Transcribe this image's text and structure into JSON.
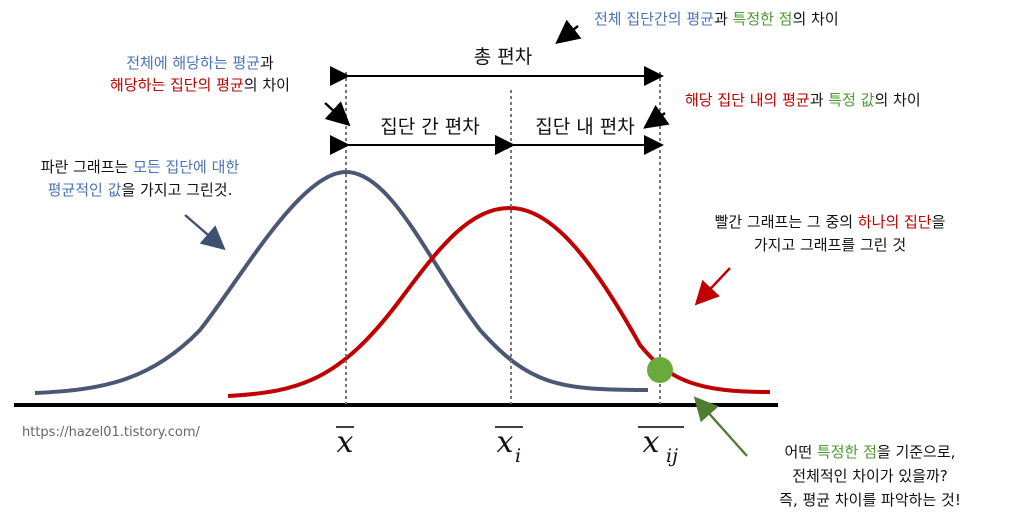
{
  "colors": {
    "blue_curve": "#4a5873",
    "red_curve": "#c00000",
    "green_point": "#6aaa3a",
    "blue_text": "#4a73b8",
    "red_text": "#c00000",
    "green_text": "#4e9a31",
    "axis": "#000000"
  },
  "labels": {
    "total_deviation": "총 편차",
    "between_group_deviation": "집단 간 편차",
    "within_group_deviation": "집단 내 편차",
    "x_bar": "x",
    "x_i_base": "x",
    "x_i_sub": "i",
    "x_ij_base": "x",
    "x_ij_sub": "ij",
    "watermark": "https://hazel01.tistory.com/"
  },
  "notes": {
    "top_right": {
      "part1": "전체 집단간의 평균",
      "part2": "과 ",
      "part3": "특정한 점",
      "part4": "의 차이"
    },
    "top_left": {
      "line1_part1": "전체에 해당하는 평균",
      "line1_part2": "과",
      "line2_part1": "해당하는 집단의 평균",
      "line2_part2": "의 차이"
    },
    "right_mid": {
      "part1": "해당 집단 내의 평균",
      "part2": "과 ",
      "part3": "특정 값",
      "part4": "의 차이"
    },
    "left_mid": {
      "line1_part1": "파란 그래프는 ",
      "line1_part2": "모든 집단에 대한",
      "line2_part1": "평균적인 값",
      "line2_part2": "을 가지고 그린것."
    },
    "right_lower": {
      "line1_part1": "빨간 그래프는 그 중의 ",
      "line1_part2": "하나의 집단",
      "line1_part3": "을",
      "line2": "가지고 그래프를 그린 것"
    },
    "bottom_right": {
      "line1_part1": "어떤 ",
      "line1_part2": "특정한 점",
      "line1_part3": "을 기준으로,",
      "line2": "전체적인 차이가 있을까?",
      "line3": "즉,  평균 차이를 파악하는 것!"
    }
  }
}
